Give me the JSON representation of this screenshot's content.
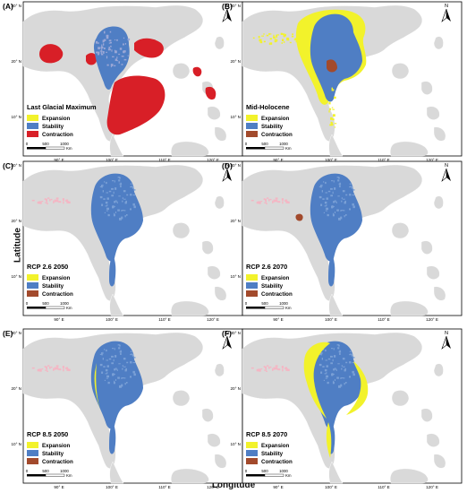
{
  "figure": {
    "x_axis_title": "Longitude",
    "y_axis_title": "Latitude"
  },
  "ticks": {
    "lon": [
      "90° E",
      "100° E",
      "110° E",
      "120° E"
    ],
    "lat": [
      "30° N",
      "20° N",
      "10° N"
    ]
  },
  "scale_bar": {
    "labels": [
      "0",
      "500",
      "1000"
    ],
    "unit": "Km"
  },
  "north_label": "N",
  "legend_colors": {
    "expansion": "#f2f22b",
    "stability": "#4f7ec4",
    "contraction_red": "#d81f27",
    "contraction_brown": "#a24a2c",
    "land": "#d9d9d9",
    "sea": "#ffffff",
    "halo": "#f4b6c4"
  },
  "panels": [
    {
      "id": "A",
      "label": "(A)",
      "scenario": "Last Glacial Maximum",
      "legend": [
        "Expansion",
        "Stability",
        "Contraction"
      ],
      "contraction_color": "#d81f27",
      "range_level": "lgm"
    },
    {
      "id": "B",
      "label": "(B)",
      "scenario": "Mid-Holocene",
      "legend": [
        "Expansion",
        "Stability",
        "Contraction"
      ],
      "contraction_color": "#a24a2c",
      "range_level": "mid-holocene"
    },
    {
      "id": "C",
      "label": "(C)",
      "scenario": "RCP 2.6 2050",
      "legend": [
        "Expansion",
        "Stability",
        "Contraction"
      ],
      "contraction_color": "#a24a2c",
      "range_level": "rcp26-2050"
    },
    {
      "id": "D",
      "label": "(D)",
      "scenario": "RCP 2.6 2070",
      "legend": [
        "Expansion",
        "Stability",
        "Contraction"
      ],
      "contraction_color": "#a24a2c",
      "range_level": "rcp26-2070"
    },
    {
      "id": "E",
      "label": "(E)",
      "scenario": "RCP 8.5 2050",
      "legend": [
        "Expansion",
        "Stability",
        "Contraction"
      ],
      "contraction_color": "#a24a2c",
      "range_level": "rcp85-2050"
    },
    {
      "id": "F",
      "label": "(F)",
      "scenario": "RCP 8.5 2070",
      "legend": [
        "Expansion",
        "Stability",
        "Contraction"
      ],
      "contraction_color": "#a24a2c",
      "range_level": "rcp85-2070"
    }
  ]
}
